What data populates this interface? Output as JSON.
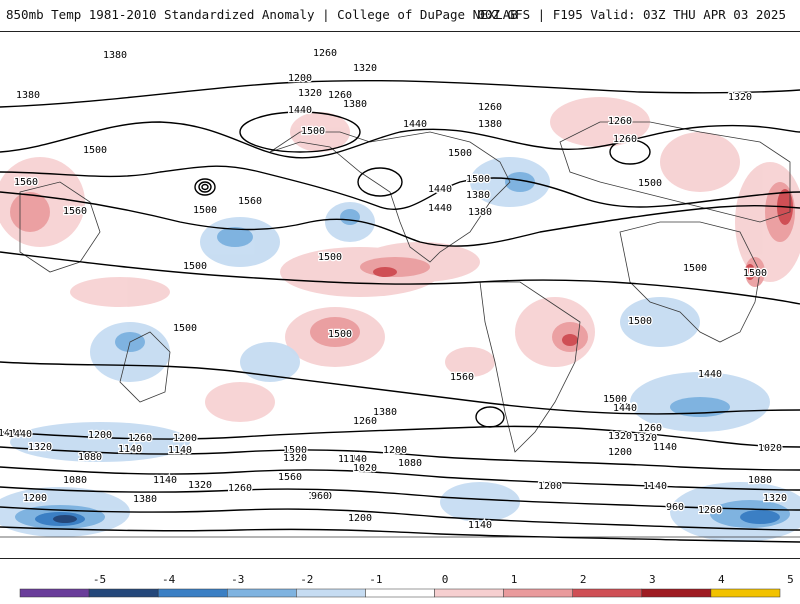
{
  "header": {
    "title_left": "850mb Temp 1981-2010 Standardized Anomaly | College of DuPage NEXLAB",
    "title_right": "00Z GFS | F195 Valid: 03Z THU APR 03 2025"
  },
  "colorbar": {
    "ticks": [
      "-5",
      "-4",
      "-3",
      "-2",
      "-1",
      "0",
      "1",
      "2",
      "3",
      "4",
      "5"
    ],
    "colors": [
      "#6a3d9a",
      "#24477a",
      "#3b7fc4",
      "#7fb3e0",
      "#c6dcf2",
      "#ffffff",
      "#f6cfd0",
      "#e99a9c",
      "#cf4f55",
      "#9e1b22",
      "#f2c200"
    ]
  },
  "map": {
    "contour_labels": [
      "1320",
      "1380",
      "1380",
      "1260",
      "1200",
      "1320",
      "1260",
      "1380",
      "1260",
      "1440",
      "1380",
      "1440",
      "1500",
      "1500",
      "1560",
      "1500",
      "1500",
      "1500",
      "1440",
      "1380",
      "1260",
      "1320",
      "1260",
      "1500",
      "1560",
      "1440",
      "1380",
      "1560",
      "1500",
      "1500",
      "1500",
      "1500",
      "1500",
      "1500",
      "1500",
      "1560",
      "1440",
      "1380",
      "1500",
      "1440",
      "1320",
      "1380",
      "1260",
      "1200",
      "1140",
      "1080",
      "1440",
      "1320",
      "1260",
      "1200",
      "1140",
      "1080",
      "1140",
      "1020",
      "1080",
      "1200",
      "1140",
      "1320",
      "1260",
      "1560",
      "1500",
      "1320",
      "1200",
      "960",
      "1140",
      "1080",
      "1200",
      "1140",
      "1080",
      "960",
      "1200",
      "1260",
      "1320",
      "1440",
      "1140",
      "1200",
      "1380",
      "1260",
      "1320",
      "1200",
      "1140",
      "1020"
    ]
  }
}
